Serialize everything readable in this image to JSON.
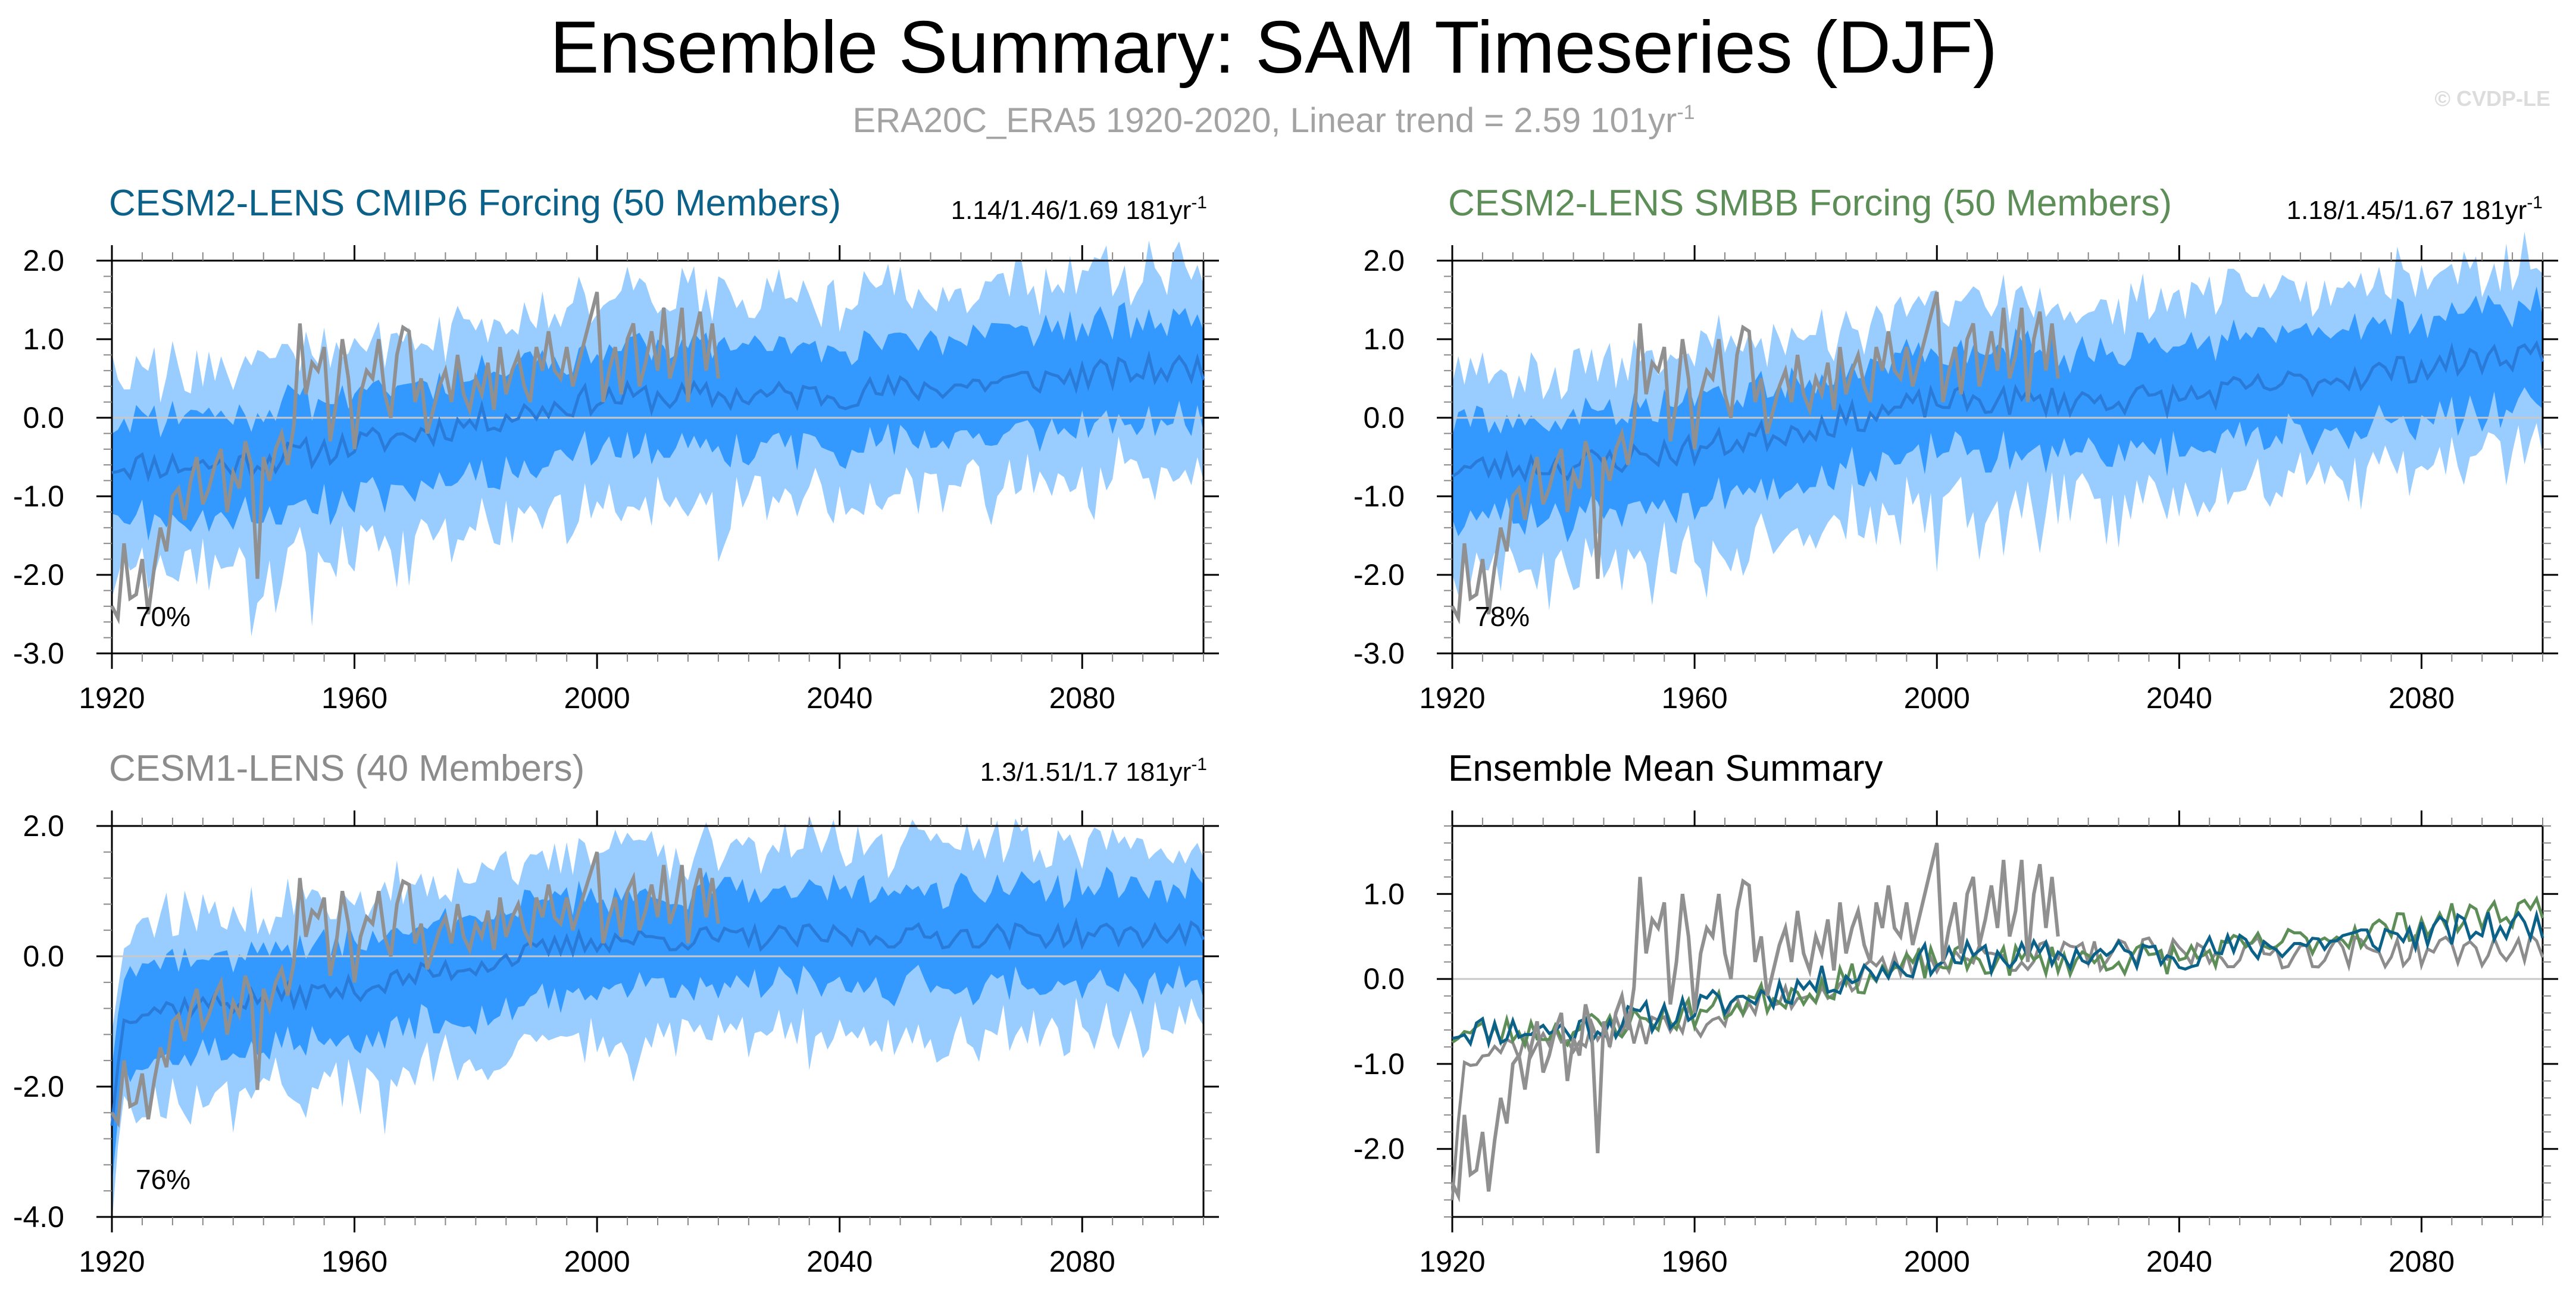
{
  "figure": {
    "title": "Ensemble Summary: SAM Timeseries (DJF)",
    "subtitle_main": "ERA20C_ERA5 1920-2020, Linear trend = 2.59 101yr",
    "subtitle_exp": "-1",
    "watermark": "© CVDP-LE"
  },
  "colors": {
    "outer_band": "#99ccff",
    "inner_band": "#3399ff",
    "ens_mean": "#2a7ad8",
    "obs": "#909090",
    "cmip6": "#0b6188",
    "smbb": "#5e8e58",
    "cesm1": "#8c8c8c",
    "zero_line": "#c8c8c8"
  },
  "chart_data": [
    {
      "id": "cmip6",
      "type": "area",
      "title": "CESM2-LENS CMIP6 Forcing (50 Members)",
      "title_color": "#0b6188",
      "stats_main": "1.14/1.46/1.69 181yr",
      "stats_exp": "-1",
      "percent_label": "70%",
      "xlim": [
        1920,
        2100
      ],
      "ylim": [
        -3.0,
        2.0
      ],
      "x_ticks": [
        1920,
        1960,
        2000,
        2040,
        2080
      ],
      "x_tick_labels": [
        "1920",
        "1960",
        "2000",
        "2040",
        "2080"
      ],
      "y_ticks": [
        -3,
        -2,
        -1,
        0,
        1,
        2
      ],
      "y_tick_labels": [
        "-3.0",
        "-2.0",
        "-1.0",
        "0.0",
        "1.0",
        "2.0"
      ],
      "y_minor_step": 0.2,
      "ensemble_mean_knots": {
        "x": [
          1920,
          1940,
          1960,
          1990,
          2000,
          2040,
          2100
        ],
        "y": [
          -0.6,
          -0.6,
          -0.35,
          0.1,
          0.25,
          0.3,
          0.65
        ]
      },
      "inner_spread": 0.65,
      "outer_spread": 1.25,
      "seed": 11
    },
    {
      "id": "smbb",
      "type": "area",
      "title": "CESM2-LENS SMBB Forcing (50 Members)",
      "title_color": "#5e8e58",
      "stats_main": "1.18/1.45/1.67 181yr",
      "stats_exp": "-1",
      "percent_label": "78%",
      "xlim": [
        1920,
        2100
      ],
      "ylim": [
        -3.0,
        2.0
      ],
      "x_ticks": [
        1920,
        1960,
        2000,
        2040,
        2080
      ],
      "x_tick_labels": [
        "1920",
        "1960",
        "2000",
        "2040",
        "2080"
      ],
      "y_ticks": [
        -3,
        -2,
        -1,
        0,
        1,
        2
      ],
      "y_tick_labels": [
        "-3.0",
        "-2.0",
        "-1.0",
        "0.0",
        "1.0",
        "2.0"
      ],
      "y_minor_step": 0.2,
      "ensemble_mean_knots": {
        "x": [
          1920,
          1940,
          1960,
          1990,
          2000,
          2040,
          2100
        ],
        "y": [
          -0.65,
          -0.6,
          -0.4,
          0.05,
          0.2,
          0.25,
          0.85
        ]
      },
      "inner_spread": 0.65,
      "outer_spread": 1.25,
      "seed": 23
    },
    {
      "id": "cesm1",
      "type": "area",
      "title": "CESM1-LENS (40 Members)",
      "title_color": "#8c8c8c",
      "stats_main": "1.3/1.51/1.7 181yr",
      "stats_exp": "-1",
      "percent_label": "76%",
      "xlim": [
        1920,
        2100
      ],
      "ylim": [
        -4.0,
        2.0
      ],
      "x_ticks": [
        1920,
        1960,
        2000,
        2040,
        2080
      ],
      "x_tick_labels": [
        "1920",
        "1960",
        "2000",
        "2040",
        "2080"
      ],
      "y_ticks": [
        -4,
        -2,
        0,
        2
      ],
      "y_tick_labels": [
        "-4.0",
        "-2.0",
        "0.0",
        "2.0"
      ],
      "y_minor_step": 0.4,
      "ensemble_mean_knots": {
        "x": [
          1920,
          1922,
          1940,
          1960,
          2000,
          2040,
          2100
        ],
        "y": [
          -2.6,
          -0.85,
          -0.7,
          -0.5,
          0.25,
          0.3,
          0.35
        ]
      },
      "inner_spread": 0.75,
      "outer_spread": 1.4,
      "seed": 37
    },
    {
      "id": "summary",
      "type": "line",
      "title": "Ensemble Mean Summary",
      "title_color": "#000000",
      "xlim": [
        1920,
        2100
      ],
      "ylim": [
        -2.8,
        1.8
      ],
      "x_ticks": [
        1920,
        1960,
        2000,
        2040,
        2080
      ],
      "x_tick_labels": [
        "1920",
        "1960",
        "2000",
        "2040",
        "2080"
      ],
      "y_ticks": [
        -2,
        -1,
        0,
        1
      ],
      "y_tick_labels": [
        "-2.0",
        "-1.0",
        "0.0",
        "1.0"
      ],
      "y_minor_step": 0.2,
      "series": [
        "cmip6",
        "smbb",
        "cesm1",
        "obs"
      ]
    }
  ],
  "observations": {
    "name": "ERA20C_ERA5",
    "x_start": 1920,
    "values": [
      -2.4,
      -2.55,
      -1.6,
      -2.3,
      -2.25,
      -1.8,
      -2.5,
      -1.9,
      -1.4,
      -1.7,
      -1.0,
      -0.9,
      -1.3,
      -0.8,
      -0.5,
      -1.1,
      -0.9,
      -0.6,
      -0.4,
      -1.2,
      -0.7,
      -0.9,
      -0.3,
      -0.6,
      -2.05,
      -0.5,
      -0.8,
      -0.4,
      -0.2,
      -0.6,
      -0.1,
      1.2,
      0.3,
      0.7,
      0.6,
      0.9,
      -0.3,
      0.2,
      1.0,
      0.5,
      -0.4,
      0.3,
      0.6,
      0.5,
      1.0,
      0.3,
      0.0,
      0.8,
      1.15,
      1.1,
      0.2,
      0.5,
      -0.2,
      0.1,
      0.4,
      0.6,
      0.2,
      0.8,
      0.3,
      0.1,
      0.5,
      0.3,
      0.7,
      0.1,
      0.9,
      0.3,
      0.6,
      0.8,
      0.4,
      0.2,
      0.9,
      0.6,
      1.1,
      0.6,
      0.5,
      0.9,
      0.4,
      0.7,
      1.0,
      1.3,
      1.6,
      0.2,
      0.6,
      0.9,
      0.3,
      1.0,
      1.2,
      0.4,
      0.7,
      1.1,
      0.6,
      1.4,
      0.5,
      0.8,
      1.4,
      0.2,
      1.0,
      1.35,
      0.6,
      1.2,
      0.5
    ]
  }
}
